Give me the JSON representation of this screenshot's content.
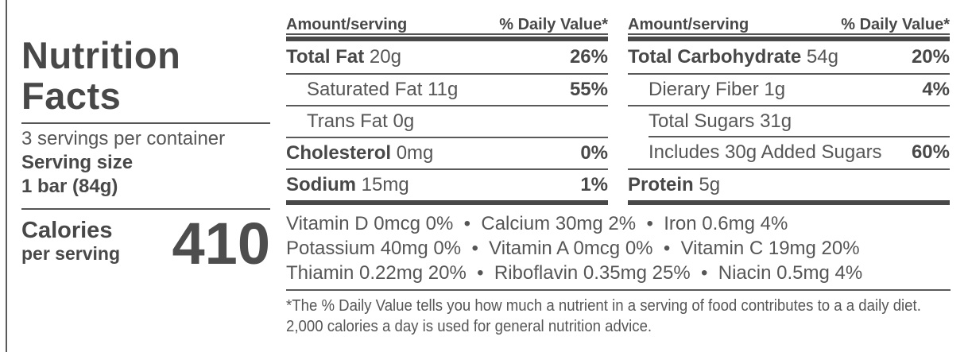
{
  "colors": {
    "text_primary": "#484848",
    "text_secondary": "#565656",
    "rule": "#5a5a5a",
    "thick_bar": "#484848",
    "background": "#ffffff"
  },
  "panel": {
    "title_line1": "Nutrition",
    "title_line2": "Facts",
    "servings_per_container": "3 servings per container",
    "serving_size_label": "Serving size",
    "serving_size_value": "1 bar (84g)",
    "calories_label": "Calories",
    "calories_sublabel": "per serving",
    "calories_value": "410"
  },
  "columns": [
    {
      "header": {
        "amount": "Amount/serving",
        "daily_value": "% Daily Value*"
      },
      "rows": [
        {
          "name": "Total Fat",
          "amount": "20g",
          "dv": "26%"
        },
        {
          "name": "Saturated Fat",
          "amount": "11g",
          "dv": "55%"
        },
        {
          "name": "Trans Fat",
          "amount": "0g",
          "dv": ""
        },
        {
          "name": "Cholesterol",
          "amount": "0mg",
          "dv": "0%"
        },
        {
          "name": "Sodium",
          "amount": "15mg",
          "dv": "1%"
        }
      ]
    },
    {
      "header": {
        "amount": "Amount/serving",
        "daily_value": "% Daily Value*"
      },
      "rows": [
        {
          "name": "Total Carbohydrate",
          "amount": "54g",
          "dv": "20%"
        },
        {
          "name": "Dierary Fiber",
          "amount": "1g",
          "dv": "4%"
        },
        {
          "name": "Total Sugars",
          "amount": "31g",
          "dv": ""
        },
        {
          "name": "Includes 30g Added Sugars",
          "amount": "",
          "dv": "60%"
        },
        {
          "name": "Protein",
          "amount": "5g",
          "dv": ""
        }
      ]
    }
  ],
  "micronutrients": {
    "lines": [
      "Vitamin D 0mcg 0%  •  Calcium 30mg 2%  •  Iron 0.6mg 4%",
      "Potassium 40mg 0%  •  Vitamin A 0mcg 0%  •  Vitamin C 19mg 20%",
      "Thiamin 0.22mg 20%  •  Riboflavin 0.35mg 25%  •  Niacin 0.5mg 4%"
    ]
  },
  "footnote": {
    "line1": "*The % Daily Value tells you how much a nutrient in a serving of food contributes to a a daily diet.",
    "line2": "2,000 calories a day is used for general nutrition advice."
  }
}
